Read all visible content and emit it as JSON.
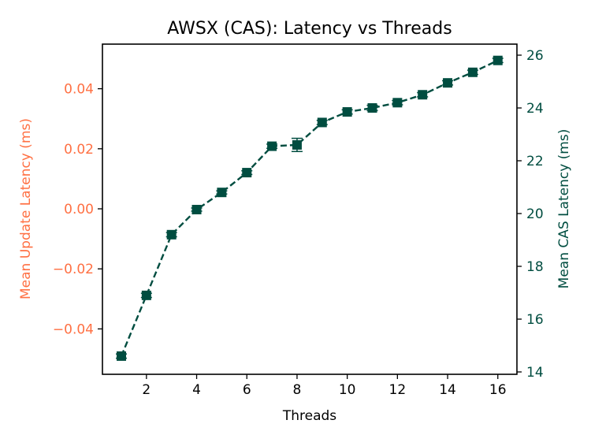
{
  "chart_data": {
    "type": "line",
    "title": "AWSX (CAS): Latency vs Threads",
    "xlabel": "Threads",
    "ylabel_left": "Mean Update Latency (ms)",
    "ylabel_right": "Mean CAS Latency (ms)",
    "xlim": [
      0.25,
      16.75
    ],
    "ylim_left": [
      -0.055,
      0.055
    ],
    "ylim_right": [
      14.0,
      26.4
    ],
    "x_ticks": [
      2,
      4,
      6,
      8,
      10,
      12,
      14,
      16
    ],
    "x_tick_labels": [
      "2",
      "4",
      "6",
      "8",
      "10",
      "12",
      "14",
      "16"
    ],
    "y_left_ticks": [
      0.04,
      0.02,
      0.0,
      -0.02,
      -0.04
    ],
    "y_left_tick_labels": [
      "0.04",
      "0.02",
      "0.00",
      "−0.02",
      "−0.04"
    ],
    "y_right_ticks": [
      26,
      24,
      22,
      20,
      18,
      16,
      14
    ],
    "y_right_tick_labels": [
      "26",
      "24",
      "22",
      "20",
      "18",
      "16",
      "14"
    ],
    "grid": false,
    "legend": null,
    "x": [
      1,
      2,
      3,
      4,
      5,
      6,
      7,
      8,
      9,
      10,
      11,
      12,
      13,
      14,
      15,
      16
    ],
    "series": [
      {
        "name": "Mean CAS Latency (ms)",
        "axis": "right",
        "marker": "square",
        "linestyle": "dashed",
        "values": [
          14.6,
          16.9,
          19.2,
          20.15,
          20.8,
          21.55,
          22.55,
          22.6,
          23.45,
          23.85,
          24.0,
          24.2,
          24.5,
          24.95,
          25.35,
          25.8
        ],
        "errors": [
          0.08,
          0.08,
          0.08,
          0.06,
          0.06,
          0.07,
          0.08,
          0.25,
          0.08,
          0.08,
          0.1,
          0.08,
          0.08,
          0.08,
          0.08,
          0.08
        ]
      },
      {
        "name": "Mean Update Latency (ms)",
        "axis": "left",
        "values": []
      }
    ],
    "colors": {
      "cas": "#004d40",
      "update": "#ff7043",
      "axis": "#000000"
    }
  }
}
